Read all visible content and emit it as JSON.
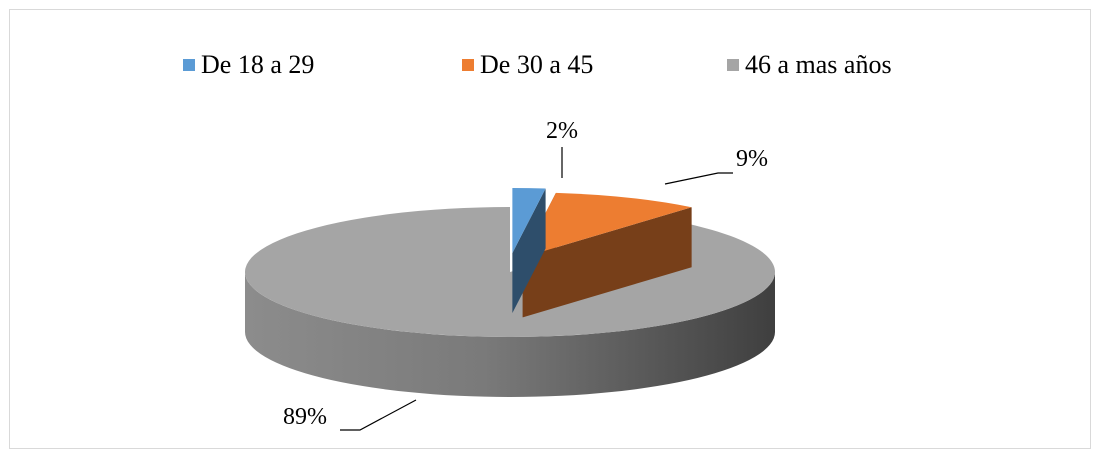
{
  "chart_data": {
    "type": "pie",
    "style": "3d-exploded",
    "legend_position": "top",
    "slices": [
      {
        "label": "De 18 a 29",
        "value": 2,
        "value_label": "2%",
        "color": "#5b9bd5"
      },
      {
        "label": "De 30 a 45",
        "value": 9,
        "value_label": "9%",
        "color": "#ed7d31"
      },
      {
        "label": "46 a mas años",
        "value": 89,
        "value_label": "89%",
        "color": "#a5a5a5"
      }
    ]
  }
}
